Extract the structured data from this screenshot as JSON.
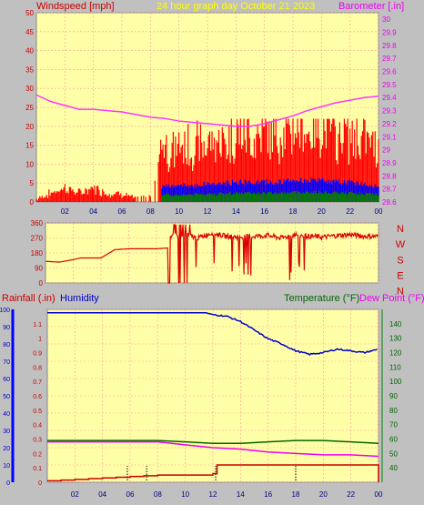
{
  "colors": {
    "panel": "#ffffa8",
    "grid": "#ff9a9a",
    "wind": "#ff0000",
    "gust": "#ff0000",
    "avgWind": "#0000ff",
    "lowWind": "#008000",
    "baro": "#ff33ff",
    "dir": "#dd0000",
    "humidity": "#0000cc",
    "temp": "#006600",
    "dew": "#ee00ee",
    "rain": "#cc0000",
    "title": "#ffff00"
  },
  "header": {
    "wind_label": "Windspeed [mph]",
    "title": "24 hour graph day   October 21 2023",
    "baro_label": "Barometer [.in]"
  },
  "lower_header": {
    "rain_label": "Rainfall (.in)",
    "hum_label": "Humidity",
    "temp_label": "Temperature (°F)",
    "dew_label": "Dew Point (°F)"
  },
  "compass": [
    "N",
    "W",
    "S",
    "E",
    "N"
  ],
  "chart_data": [
    {
      "type": "line",
      "title": "24 hour graph day   October 21 2023",
      "ylabel": "Windspeed [mph]",
      "y2label": "Barometer [.in]",
      "ylim": [
        0,
        50
      ],
      "y2lim": [
        28.6,
        30.05
      ],
      "xlim": [
        0,
        24
      ],
      "xticks": [
        "02",
        "04",
        "06",
        "08",
        "10",
        "12",
        "14",
        "16",
        "18",
        "20",
        "22",
        "00"
      ],
      "yticks": [
        "0",
        "5",
        "10",
        "15",
        "20",
        "25",
        "30",
        "35",
        "40",
        "45",
        "50"
      ],
      "y2ticks": [
        "28.6",
        "28.7",
        "28.8",
        "28.9",
        "29",
        "29.1",
        "29.2",
        "29.3",
        "29.4",
        "29.5",
        "29.6",
        "29.7",
        "29.8",
        "29.9",
        "30"
      ],
      "series": [
        {
          "name": "Windspeed [mph]",
          "x": [
            0,
            1,
            2,
            3,
            4,
            5,
            6,
            7,
            8,
            8.5,
            9,
            9.5,
            10,
            11,
            12,
            13,
            14,
            15,
            16,
            17,
            18,
            19,
            20,
            21,
            22,
            23,
            24
          ],
          "y": [
            0,
            1,
            2,
            1,
            2,
            1,
            1,
            0,
            1,
            5,
            9,
            7,
            8,
            8,
            9,
            9,
            10,
            10,
            10,
            10,
            11,
            11,
            11,
            10,
            10,
            9,
            8
          ]
        },
        {
          "name": "Barometer [.in]",
          "x": [
            0,
            1,
            2,
            3,
            4,
            5,
            6,
            7,
            8,
            9,
            10,
            11,
            12,
            13,
            14,
            15,
            16,
            17,
            18,
            19,
            20,
            21,
            22,
            23,
            24
          ],
          "y": [
            29.42,
            29.37,
            29.34,
            29.31,
            29.31,
            29.3,
            29.29,
            29.27,
            29.25,
            29.24,
            29.22,
            29.21,
            29.2,
            29.19,
            29.18,
            29.18,
            29.2,
            29.23,
            29.26,
            29.3,
            29.33,
            29.36,
            29.38,
            29.4,
            29.41
          ]
        }
      ]
    },
    {
      "type": "line",
      "title": "",
      "ylabel": "",
      "ylim": [
        0,
        360
      ],
      "xlim": [
        0,
        24
      ],
      "yticks": [
        "0",
        "90",
        "180",
        "270",
        "360"
      ],
      "series": [
        {
          "name": "",
          "x": [
            0,
            1,
            2,
            2.5,
            3,
            4,
            5,
            6,
            7,
            8,
            8.8,
            9,
            10,
            11,
            12,
            13,
            14,
            15,
            16,
            17,
            18,
            19,
            20,
            21,
            22,
            23,
            24
          ],
          "y": [
            130,
            125,
            140,
            150,
            150,
            150,
            200,
            205,
            205,
            205,
            210,
            280,
            290,
            270,
            300,
            280,
            275,
            280,
            285,
            270,
            290,
            280,
            275,
            285,
            290,
            280,
            280
          ]
        }
      ]
    },
    {
      "type": "line",
      "title": "",
      "ylim": [
        0,
        100
      ],
      "y2lim": [
        0,
        1.2
      ],
      "y3lim": [
        30,
        150
      ],
      "xlim": [
        0,
        24
      ],
      "yticks": [
        "0",
        "10",
        "20",
        "30",
        "40",
        "50",
        "60",
        "70",
        "80",
        "90",
        "100"
      ],
      "y2ticks": [
        "0",
        "0.1",
        "0.2",
        "0.3",
        "0.4",
        "0.5",
        "0.6",
        "0.7",
        "0.8",
        "0.9",
        "1",
        "1.1"
      ],
      "y3ticks": [
        "40",
        "50",
        "60",
        "70",
        "80",
        "90",
        "100",
        "110",
        "120",
        "130",
        "140"
      ],
      "series": [
        {
          "name": "Humidity",
          "x": [
            0,
            2,
            4,
            6,
            8,
            10,
            11.5,
            12,
            13,
            14,
            15,
            16,
            17,
            18,
            19,
            20,
            21,
            22,
            23,
            24
          ],
          "y": [
            98,
            98,
            98,
            98,
            98,
            98,
            98,
            97,
            96,
            93,
            88,
            83,
            80,
            76,
            74,
            75,
            77,
            76,
            75,
            77
          ]
        },
        {
          "name": "Temperature (°F)",
          "x": [
            0,
            2,
            4,
            6,
            8,
            10,
            12,
            14,
            16,
            18,
            20,
            22,
            24
          ],
          "y": [
            59,
            59,
            59,
            59,
            59,
            58,
            57,
            57,
            58,
            59,
            59,
            58,
            57
          ]
        },
        {
          "name": "Dew Point (°F)",
          "x": [
            0,
            2,
            4,
            6,
            8,
            10,
            12,
            14,
            16,
            18,
            20,
            22,
            24
          ],
          "y": [
            58,
            58,
            58,
            58,
            58,
            56,
            54,
            53,
            51,
            50,
            49,
            49,
            48
          ]
        },
        {
          "name": "Rainfall (.in)",
          "x": [
            0,
            1,
            2,
            3,
            4,
            5,
            6,
            7,
            8,
            9,
            10,
            11,
            12,
            12.3,
            13,
            14,
            15,
            16,
            17,
            18,
            19,
            20,
            21,
            22,
            23,
            23.8,
            24
          ],
          "y": [
            0.01,
            0.015,
            0.02,
            0.025,
            0.03,
            0.035,
            0.04,
            0.045,
            0.05,
            0.05,
            0.05,
            0.05,
            0.06,
            0.12,
            0.12,
            0.12,
            0.12,
            0.12,
            0.12,
            0.12,
            0.12,
            0.12,
            0.12,
            0.12,
            0.12,
            0.12,
            0.0
          ]
        }
      ]
    }
  ]
}
